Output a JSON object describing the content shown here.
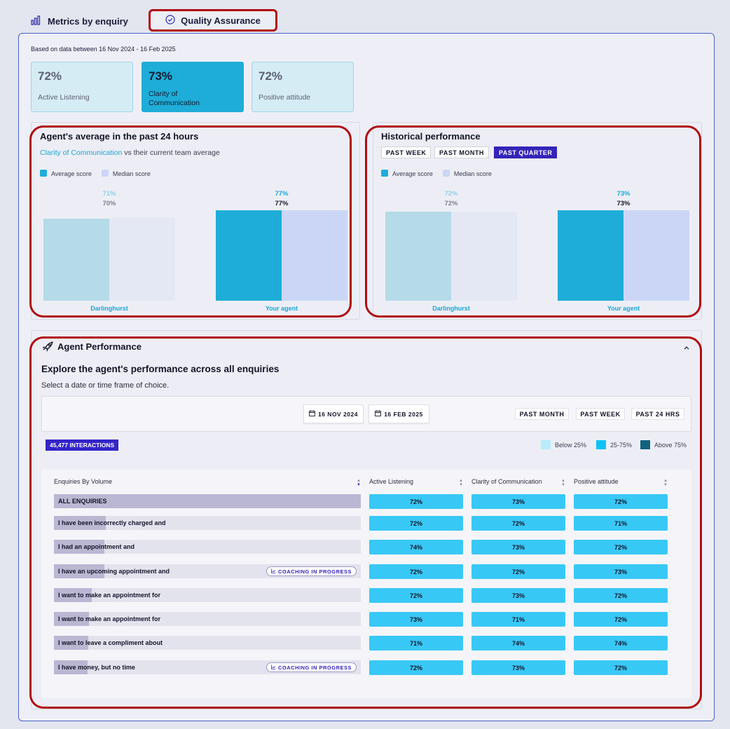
{
  "tabs": [
    {
      "label": "Metrics by enquiry",
      "icon": "bar-chart-icon"
    },
    {
      "label": "Quality Assurance",
      "icon": "check-circle-icon"
    }
  ],
  "based_on": "Based on data between 16 Nov 2024 - 16 Feb 2025",
  "kpis": [
    {
      "value": "72%",
      "label": "Active Listening"
    },
    {
      "value": "73%",
      "label": "Clarity of Communication"
    },
    {
      "value": "72%",
      "label": "Positive attitude"
    }
  ],
  "agent_panel": {
    "title": "Agent's average in the past 24 hours",
    "metric": "Clarity of Communication",
    "subtitle_rest": "vs their current team average",
    "legend": [
      "Average score",
      "Median score"
    ],
    "chart_data": {
      "type": "bar",
      "categories": [
        "Darlinghurst",
        "Your agent"
      ],
      "series": [
        {
          "name": "Average score",
          "values": [
            70,
            77
          ],
          "labels": [
            "70%",
            "77%"
          ]
        },
        {
          "name": "Median score",
          "values": [
            71,
            77
          ],
          "labels": [
            "71%",
            "77%"
          ]
        }
      ]
    }
  },
  "historical_panel": {
    "title": "Historical performance",
    "buttons": [
      "PAST WEEK",
      "PAST MONTH",
      "PAST QUARTER"
    ],
    "active_button": "PAST QUARTER",
    "legend": [
      "Average score",
      "Median score"
    ],
    "chart_data": {
      "type": "bar",
      "categories": [
        "Darlinghurst",
        "Your agent"
      ],
      "series": [
        {
          "name": "Average score",
          "values": [
            72,
            73
          ],
          "labels": [
            "72%",
            "73%"
          ]
        },
        {
          "name": "Median score",
          "values": [
            72,
            73
          ],
          "labels": [
            "72%",
            "73%"
          ]
        }
      ]
    }
  },
  "performance": {
    "title": "Agent Performance",
    "explore": "Explore the agent's performance across all enquiries",
    "select": "Select a date or time frame of choice.",
    "date_from": "16 NOV 2024",
    "date_to": "16 FEB 2025",
    "range_buttons": [
      "PAST MONTH",
      "PAST WEEK",
      "PAST 24 HRS"
    ],
    "interactions": "45,477 INTERACTIONS",
    "legend": [
      "Below 25%",
      "25-75%",
      "Above 75%"
    ],
    "columns": [
      "Enquiries By Volume",
      "Active Listening",
      "Clarity of Communication",
      "Positive attitude"
    ],
    "coaching_label": "COACHING IN PROGRESS",
    "rows": [
      {
        "name": "ALL ENQUIRIES",
        "volume": 1.0,
        "coaching": false,
        "scores": [
          "72%",
          "73%",
          "72%"
        ]
      },
      {
        "name": "I have been incorrectly charged and",
        "volume": 0.168,
        "coaching": false,
        "scores": [
          "72%",
          "72%",
          "71%"
        ]
      },
      {
        "name": "I had an appointment and",
        "volume": 0.164,
        "coaching": false,
        "scores": [
          "74%",
          "73%",
          "72%"
        ]
      },
      {
        "name": "I have an upcoming appointment and",
        "volume": 0.164,
        "coaching": true,
        "scores": [
          "72%",
          "72%",
          "73%"
        ]
      },
      {
        "name": "I want to make an appointment for",
        "volume": 0.123,
        "coaching": false,
        "scores": [
          "72%",
          "73%",
          "72%"
        ]
      },
      {
        "name": "I want to make an appointment for",
        "volume": 0.114,
        "coaching": false,
        "scores": [
          "73%",
          "71%",
          "72%"
        ]
      },
      {
        "name": "I want to leave a compliment about",
        "volume": 0.112,
        "coaching": false,
        "scores": [
          "71%",
          "74%",
          "74%"
        ]
      },
      {
        "name": "I have money, but no time",
        "volume": 0.109,
        "coaching": true,
        "scores": [
          "72%",
          "73%",
          "72%"
        ]
      }
    ]
  },
  "colors": {
    "average": "#1eadd8",
    "average_dim": "#b5dbe8",
    "median": "#cbd6f6",
    "median_dim": "#e4e8f4",
    "below": "#b7ecfb",
    "mid": "#0fc2f5",
    "above": "#12637f",
    "cell": "#38c8f6",
    "accent": "#3424b8"
  }
}
